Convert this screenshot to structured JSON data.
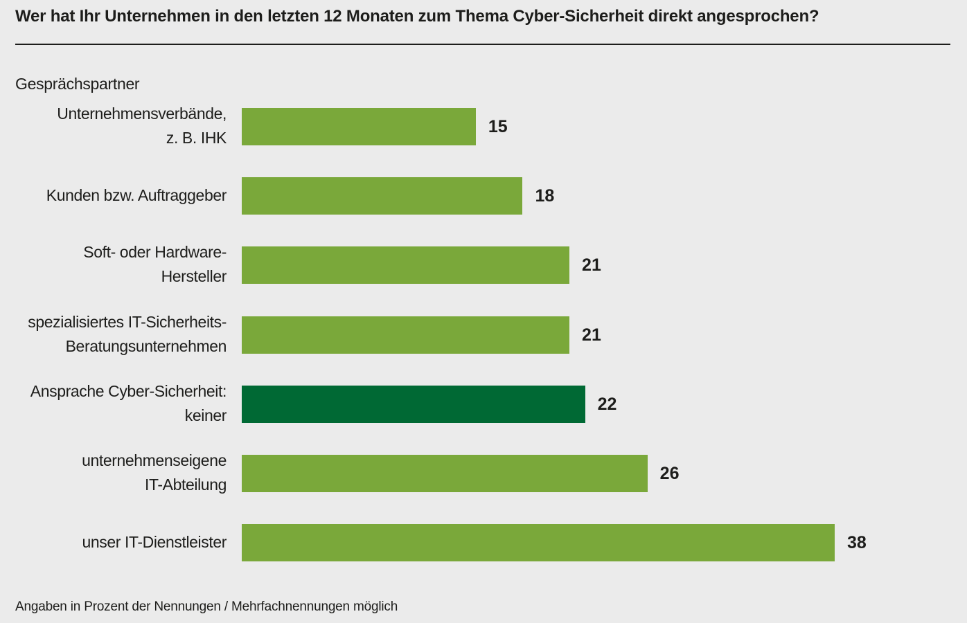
{
  "chart_data": {
    "type": "bar",
    "orientation": "horizontal",
    "title": "Wer hat Ihr Unternehmen in den letzten 12 Monaten zum Thema Cyber-Sicherheit direkt angesprochen?",
    "ylabel": "Gesprächspartner",
    "xlabel": "",
    "xlim": [
      0,
      40
    ],
    "grid": false,
    "categories": [
      [
        "Unternehmensverbände,",
        "z. B. IHK"
      ],
      [
        "Kunden bzw. Auftraggeber"
      ],
      [
        "Soft- oder Hardware-",
        "Hersteller"
      ],
      [
        "spezialisiertes IT-Sicherheits-",
        "Beratungsunternehmen"
      ],
      [
        "Ansprache Cyber-Sicherheit:",
        "keiner"
      ],
      [
        "unternehmenseigene",
        "IT-Abteilung"
      ],
      [
        "unser IT-Dienstleister"
      ]
    ],
    "values": [
      15,
      18,
      21,
      21,
      22,
      26,
      38
    ],
    "highlight_index": 4,
    "colors": {
      "bar": "#7aa83a",
      "highlight": "#006934"
    },
    "footnote": "Angaben in Prozent der Nennungen / Mehrfachnennungen möglich"
  }
}
